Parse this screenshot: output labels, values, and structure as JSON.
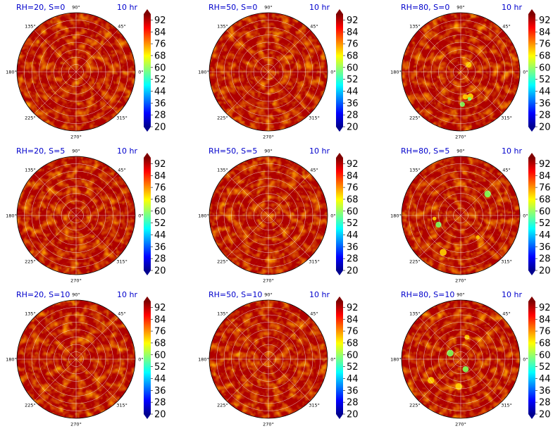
{
  "figure": {
    "rows": 3,
    "cols": 3,
    "colormap": "jet",
    "title_color": "#0000cc",
    "colorbar_ticks": [
      "92",
      "84",
      "76",
      "68",
      "60",
      "52",
      "44",
      "36",
      "28",
      "20"
    ],
    "angle_labels": [
      "0°",
      "45°",
      "90°",
      "135°",
      "180°",
      "225°",
      "270°",
      "315°"
    ],
    "radial_ring_count": 7,
    "grid": true
  },
  "chart_data": [
    {
      "type": "heatmap",
      "projection": "polar",
      "title_left": "RH=20, S=0",
      "title_right": "10 hr",
      "clim": [
        20,
        96
      ],
      "dominant_value_range": [
        84,
        96
      ]
    },
    {
      "type": "heatmap",
      "projection": "polar",
      "title_left": "RH=50, S=0",
      "title_right": "10 hr",
      "clim": [
        20,
        96
      ],
      "dominant_value_range": [
        84,
        96
      ]
    },
    {
      "type": "heatmap",
      "projection": "polar",
      "title_left": "RH=80, S=0",
      "title_right": "10 hr",
      "clim": [
        20,
        96
      ],
      "dominant_value_range": [
        68,
        96
      ]
    },
    {
      "type": "heatmap",
      "projection": "polar",
      "title_left": "RH=20, S=5",
      "title_right": "10 hr",
      "clim": [
        20,
        96
      ],
      "dominant_value_range": [
        84,
        96
      ]
    },
    {
      "type": "heatmap",
      "projection": "polar",
      "title_left": "RH=50, S=5",
      "title_right": "10 hr",
      "clim": [
        20,
        96
      ],
      "dominant_value_range": [
        84,
        96
      ]
    },
    {
      "type": "heatmap",
      "projection": "polar",
      "title_left": "RH=80, S=5",
      "title_right": "10 hr",
      "clim": [
        20,
        96
      ],
      "dominant_value_range": [
        68,
        96
      ]
    },
    {
      "type": "heatmap",
      "projection": "polar",
      "title_left": "RH=20, S=10",
      "title_right": "10 hr",
      "clim": [
        20,
        96
      ],
      "dominant_value_range": [
        84,
        96
      ]
    },
    {
      "type": "heatmap",
      "projection": "polar",
      "title_left": "RH=50, S=10",
      "title_right": "10 hr",
      "clim": [
        20,
        96
      ],
      "dominant_value_range": [
        84,
        96
      ]
    },
    {
      "type": "heatmap",
      "projection": "polar",
      "title_left": "RH=80, S=10",
      "title_right": "10 hr",
      "clim": [
        20,
        96
      ],
      "dominant_value_range": [
        68,
        96
      ]
    }
  ]
}
